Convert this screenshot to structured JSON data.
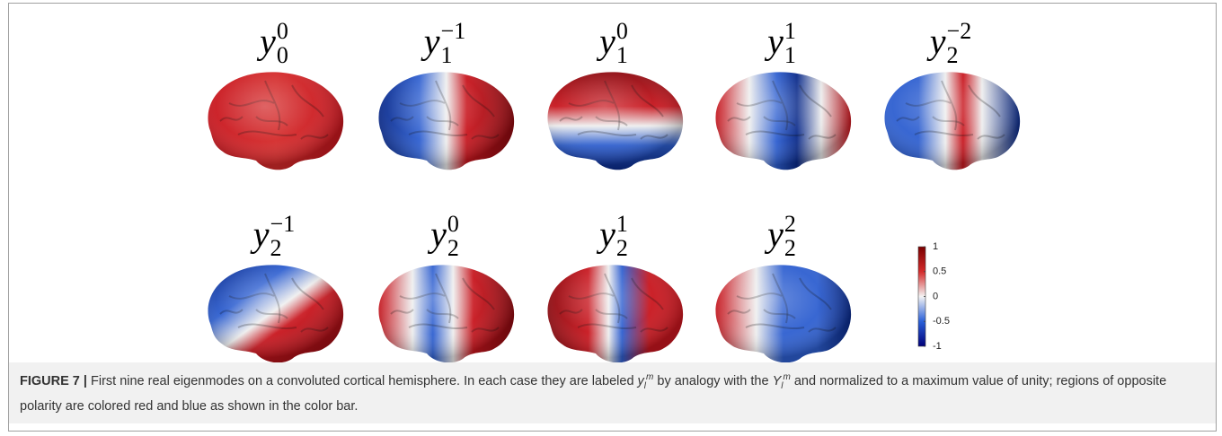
{
  "figure": {
    "panels": [
      {
        "base": "y",
        "sub": "0",
        "sup": "0"
      },
      {
        "base": "y",
        "sub": "1",
        "sup": "−1"
      },
      {
        "base": "y",
        "sub": "1",
        "sup": "0"
      },
      {
        "base": "y",
        "sub": "1",
        "sup": "1"
      },
      {
        "base": "y",
        "sub": "2",
        "sup": "−2"
      },
      {
        "base": "y",
        "sub": "2",
        "sup": "−1"
      },
      {
        "base": "y",
        "sub": "2",
        "sup": "0"
      },
      {
        "base": "y",
        "sub": "2",
        "sup": "1"
      },
      {
        "base": "y",
        "sub": "2",
        "sup": "2"
      }
    ],
    "colorbar": {
      "lim": [
        -1,
        1
      ],
      "ticks": [
        1,
        0.5,
        0,
        -0.5,
        -1
      ]
    }
  },
  "caption": {
    "label": "FIGURE 7 |",
    "text1": " First nine real eigenmodes on a convoluted cortical hemisphere. In each case they are labeled ",
    "math1": {
      "base": "y",
      "sub": "l",
      "sup": "m"
    },
    "text2": " by analogy with the ",
    "math2": {
      "base": "Y",
      "sub": "l",
      "sup": "m"
    },
    "text3": " and normalized to a maximum value of unity; regions of opposite polarity are colored red and blue as shown in the color bar."
  }
}
